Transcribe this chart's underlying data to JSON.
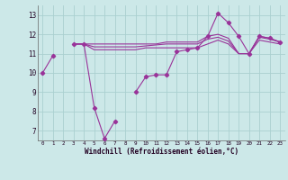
{
  "x": [
    0,
    1,
    2,
    3,
    4,
    5,
    6,
    7,
    8,
    9,
    10,
    11,
    12,
    13,
    14,
    15,
    16,
    17,
    18,
    19,
    20,
    21,
    22,
    23
  ],
  "windchill": [
    10.0,
    10.9,
    null,
    11.5,
    11.5,
    8.2,
    6.6,
    7.5,
    null,
    9.0,
    9.8,
    9.9,
    9.9,
    11.1,
    11.2,
    11.3,
    11.9,
    13.1,
    12.6,
    11.9,
    11.0,
    11.9,
    11.8,
    11.6
  ],
  "temp_line1": [
    null,
    null,
    null,
    11.5,
    11.5,
    11.5,
    11.5,
    11.5,
    11.5,
    11.5,
    11.5,
    11.5,
    11.6,
    11.6,
    11.6,
    11.6,
    11.9,
    12.0,
    11.8,
    11.0,
    11.0,
    11.9,
    11.8,
    11.6
  ],
  "temp_line2": [
    null,
    null,
    null,
    11.5,
    11.5,
    11.35,
    11.35,
    11.35,
    11.35,
    11.35,
    11.4,
    11.45,
    11.5,
    11.5,
    11.5,
    11.5,
    11.75,
    11.85,
    11.65,
    11.0,
    11.0,
    11.85,
    11.75,
    11.6
  ],
  "temp_line3": [
    null,
    null,
    null,
    11.5,
    11.5,
    11.2,
    11.2,
    11.2,
    11.2,
    11.2,
    11.3,
    11.3,
    11.3,
    11.3,
    11.3,
    11.3,
    11.5,
    11.7,
    11.5,
    11.0,
    11.0,
    11.7,
    11.6,
    11.5
  ],
  "bg_color": "#cce8e8",
  "grid_color": "#aad0d0",
  "line_color": "#993399",
  "xlabel": "Windchill (Refroidissement éolien,°C)",
  "ylabel_ticks": [
    7,
    8,
    9,
    10,
    11,
    12,
    13
  ],
  "ylim": [
    6.5,
    13.5
  ],
  "xlim": [
    -0.5,
    23.5
  ],
  "figsize": [
    3.2,
    2.0
  ],
  "dpi": 100
}
